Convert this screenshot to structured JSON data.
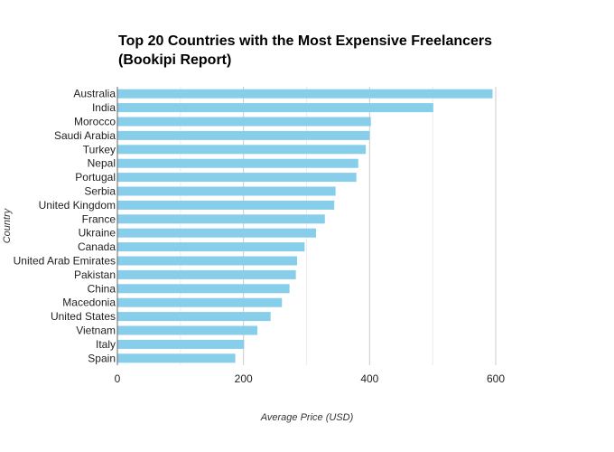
{
  "chart_data": {
    "type": "bar",
    "orientation": "horizontal",
    "title_lines": [
      "Top 20 Countries with the Most Expensive Freelancers",
      "(Bookipi Report)"
    ],
    "xlabel": "Average Price (USD)",
    "ylabel": "Country",
    "xlim": [
      0,
      600
    ],
    "xticks": [
      0,
      200,
      400,
      600
    ],
    "grid": true,
    "bar_color": "#87CEEB",
    "categories": [
      "Australia",
      "India",
      "Morocco",
      "Saudi Arabia",
      "Turkey",
      "Nepal",
      "Portugal",
      "Serbia",
      "United Kingdom",
      "France",
      "Ukraine",
      "Canada",
      "United Arab Emirates",
      "Pakistan",
      "China",
      "Macedonia",
      "United States",
      "Vietnam",
      "Italy",
      "Spain"
    ],
    "values": [
      595,
      501,
      402,
      400,
      394,
      382,
      379,
      346,
      344,
      329,
      315,
      297,
      285,
      283,
      273,
      261,
      243,
      222,
      201,
      187
    ]
  }
}
